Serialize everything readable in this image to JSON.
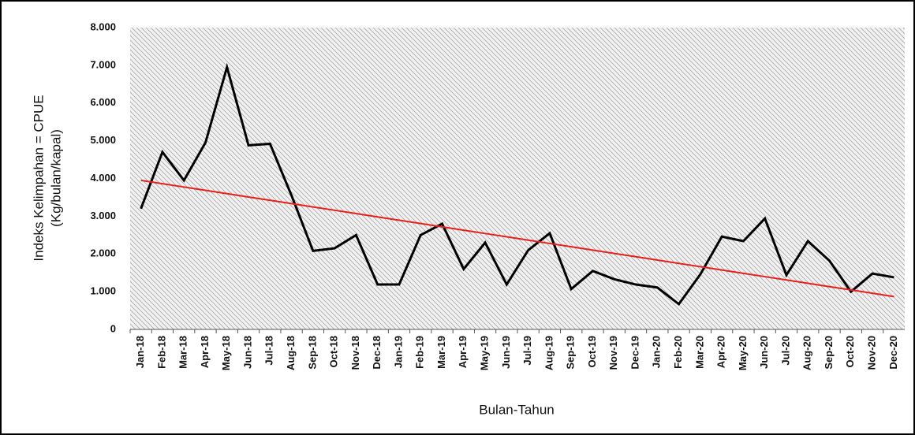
{
  "chart_data": {
    "type": "line",
    "x_label": "Bulan-Tahun",
    "y_label": [
      "Indeks Kelimpahan = CPUE",
      "(Kg/bulan/kapal)"
    ],
    "categories": [
      "Jan-18",
      "Feb-18",
      "Mar-18",
      "Apr-18",
      "May-18",
      "Jun-18",
      "Jul-18",
      "Aug-18",
      "Sep-18",
      "Oct-18",
      "Nov-18",
      "Dec-18",
      "Jan-19",
      "Feb-19",
      "Mar-19",
      "Apr-19",
      "May-19",
      "Jun-19",
      "Jul-19",
      "Aug-19",
      "Sep-19",
      "Oct-19",
      "Nov-19",
      "Dec-19",
      "Jan-20",
      "Feb-20",
      "Mar-20",
      "Apr-20",
      "May-20",
      "Jun-20",
      "Jul-20",
      "Aug-20",
      "Sep-20",
      "Oct-20",
      "Nov-20",
      "Dec-20"
    ],
    "series": [
      {
        "color": "#000000",
        "values": [
          3200,
          4700,
          3950,
          4950,
          6950,
          4880,
          4920,
          3550,
          2080,
          2150,
          2500,
          1190,
          1190,
          2500,
          2800,
          1600,
          2300,
          1190,
          2100,
          2550,
          1070,
          1550,
          1330,
          1190,
          1110,
          670,
          1460,
          2460,
          2340,
          2940,
          1440,
          2340,
          1820,
          1000,
          1480,
          1380
        ]
      },
      {
        "color": "#e8201c",
        "values": [
          3950,
          3862,
          3774,
          3686,
          3598,
          3510,
          3422,
          3334,
          3246,
          3158,
          3070,
          2982,
          2894,
          2806,
          2718,
          2630,
          2542,
          2454,
          2366,
          2278,
          2190,
          2102,
          2014,
          1926,
          1838,
          1750,
          1662,
          1574,
          1486,
          1398,
          1310,
          1222,
          1134,
          1046,
          958,
          870
        ]
      }
    ],
    "ylim": [
      0,
      8000
    ],
    "yticks": [
      0,
      {
        "value": 1000,
        "label": "1.000"
      },
      {
        "value": 2000,
        "label": "2.000"
      },
      {
        "value": 3000,
        "label": "3.000"
      },
      {
        "value": 4000,
        "label": "4.000"
      },
      {
        "value": 5000,
        "label": "5.000"
      },
      {
        "value": 6000,
        "label": "6.000"
      },
      {
        "value": 7000,
        "label": "7.000"
      },
      {
        "value": 8000,
        "label": "8.000"
      }
    ],
    "grid": false
  }
}
